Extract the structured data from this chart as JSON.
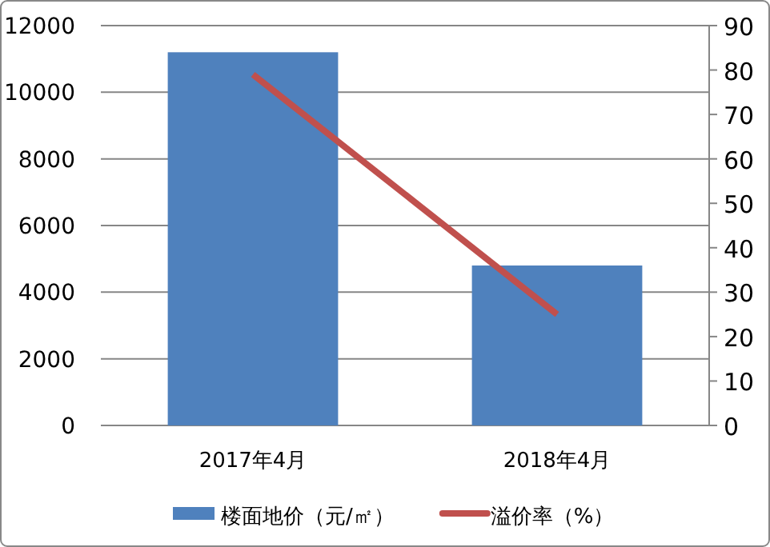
{
  "chart_data": {
    "type": "bar",
    "categories": [
      "2017年4月",
      "2018年4月"
    ],
    "series": [
      {
        "name": "楼面地价（元/㎡）",
        "color": "#4f81bd",
        "values": [
          11200,
          4800
        ]
      },
      {
        "name": "溢价率（%）",
        "type": "line",
        "axis": "y2",
        "color": "#c0504d",
        "values": [
          79,
          25
        ]
      }
    ],
    "ylim": [
      0,
      12000
    ],
    "yticks": [
      0,
      2000,
      4000,
      6000,
      8000,
      10000,
      12000
    ],
    "y2lim": [
      0,
      90
    ],
    "y2ticks": [
      0,
      10,
      20,
      30,
      40,
      50,
      60,
      70,
      80,
      90
    ],
    "grid": "y",
    "legend": "bottom",
    "marker": "none"
  }
}
